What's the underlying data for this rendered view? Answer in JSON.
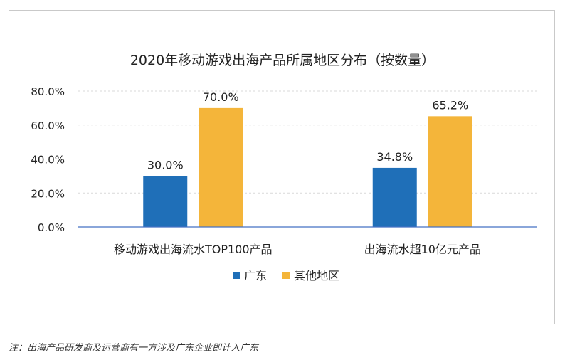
{
  "note": "注：出海产品研发商及运营商有一方涉及广东企业即计入广东",
  "chart_data": {
    "type": "bar",
    "title": "2020年移动游戏出海产品所属地区分布（按数量）",
    "categories": [
      "移动游戏出海流水TOP100产品",
      "出海流水超10亿元产品"
    ],
    "series": [
      {
        "name": "广东",
        "values": [
          30.0,
          34.8
        ],
        "labels": [
          "30.0%",
          "34.8%"
        ],
        "color": "#1f6fb8"
      },
      {
        "name": "其他地区",
        "values": [
          70.0,
          65.2
        ],
        "labels": [
          "70.0%",
          "65.2%"
        ],
        "color": "#f4b53a"
      }
    ],
    "ylim": [
      0,
      80
    ],
    "yticks": [
      "0.0%",
      "20.0%",
      "40.0%",
      "60.0%",
      "80.0%"
    ],
    "ytick_values": [
      0,
      20,
      40,
      60,
      80
    ],
    "grid": true,
    "legend_position": "bottom"
  }
}
